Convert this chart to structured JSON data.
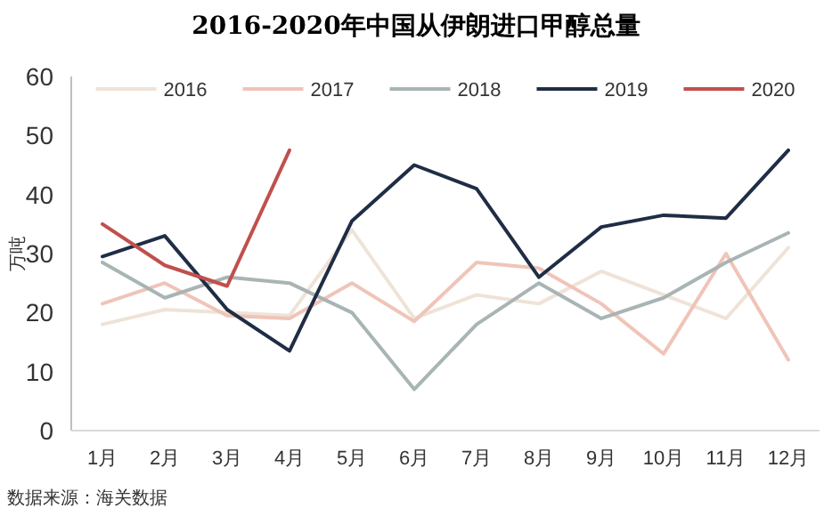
{
  "chart_data": {
    "type": "line",
    "title": "2016-2020年中国从伊朗进口甲醇总量",
    "ylabel": "万吨",
    "categories": [
      "1月",
      "2月",
      "3月",
      "4月",
      "5月",
      "6月",
      "7月",
      "8月",
      "9月",
      "10月",
      "11月",
      "12月"
    ],
    "series": [
      {
        "name": "2016",
        "color": "#efe3d8",
        "values": [
          18,
          20.5,
          20,
          19.5,
          34,
          19,
          23,
          21.5,
          27,
          23,
          19,
          31
        ]
      },
      {
        "name": "2017",
        "color": "#f0c4b8",
        "values": [
          21.5,
          25,
          19.5,
          19,
          25,
          18.5,
          28.5,
          27.5,
          21.5,
          13,
          30,
          12
        ]
      },
      {
        "name": "2018",
        "color": "#a9b4b4",
        "values": [
          28.5,
          22.5,
          26,
          25,
          20,
          7,
          18,
          25,
          19,
          22.5,
          28.5,
          33.5
        ]
      },
      {
        "name": "2019",
        "color": "#1f2d45",
        "values": [
          29.5,
          33,
          20.5,
          13.5,
          35.5,
          45,
          41,
          26,
          34.5,
          36.5,
          36,
          47.5
        ]
      },
      {
        "name": "2020",
        "color": "#c0504d",
        "values": [
          35,
          28,
          24.5,
          47.5,
          null,
          null,
          null,
          null,
          null,
          null,
          null,
          null
        ]
      }
    ],
    "ylim": [
      0,
      60
    ],
    "yticks": [
      0,
      10,
      20,
      30,
      40,
      50,
      60
    ],
    "legend": "top",
    "grid": false,
    "marker": "none",
    "line_style": "solid",
    "annotations": [
      "数据来源：海关数据"
    ]
  }
}
